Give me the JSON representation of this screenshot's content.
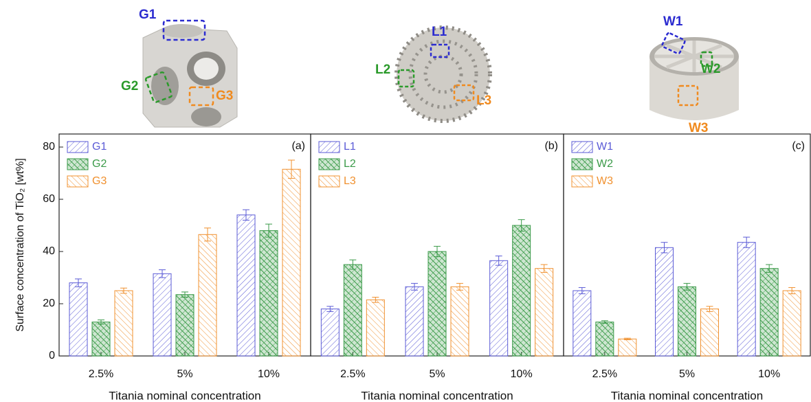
{
  "illustrations": [
    {
      "labels": [
        "G1",
        "G2",
        "G3"
      ]
    },
    {
      "labels": [
        "L1",
        "L2",
        "L3"
      ]
    },
    {
      "labels": [
        "W1",
        "W2",
        "W3"
      ]
    }
  ],
  "chart_data": [
    {
      "type": "bar",
      "panel_label": "(a)",
      "ylabel": "Surface concentration of TiO₂ [wt%]",
      "xlabel": "Titania nominal concentration",
      "categories": [
        "2.5%",
        "5%",
        "10%"
      ],
      "ylim": [
        0,
        85
      ],
      "yticks": [
        0,
        20,
        40,
        60,
        80
      ],
      "series": [
        {
          "name": "G1",
          "color": "#5a5ad6",
          "values": [
            28,
            31.5,
            54
          ],
          "errors": [
            1.5,
            1.5,
            2
          ]
        },
        {
          "name": "G2",
          "color": "#3a9a48",
          "values": [
            13,
            23.5,
            48
          ],
          "errors": [
            0.8,
            1,
            2.5
          ]
        },
        {
          "name": "G3",
          "color": "#f0902e",
          "values": [
            25,
            46.5,
            71.5
          ],
          "errors": [
            1,
            2.5,
            3.5
          ]
        }
      ]
    },
    {
      "type": "bar",
      "panel_label": "(b)",
      "xlabel": "Titania nominal concentration",
      "categories": [
        "2.5%",
        "5%",
        "10%"
      ],
      "ylim": [
        0,
        85
      ],
      "series": [
        {
          "name": "L1",
          "color": "#5a5ad6",
          "values": [
            18,
            26.5,
            36.5
          ],
          "errors": [
            1,
            1.3,
            1.8
          ]
        },
        {
          "name": "L2",
          "color": "#3a9a48",
          "values": [
            35,
            40,
            50
          ],
          "errors": [
            1.8,
            2,
            2.2
          ]
        },
        {
          "name": "L3",
          "color": "#f0902e",
          "values": [
            21.5,
            26.5,
            33.5
          ],
          "errors": [
            1,
            1.3,
            1.5
          ]
        }
      ]
    },
    {
      "type": "bar",
      "panel_label": "(c)",
      "xlabel": "Titania nominal concentration",
      "categories": [
        "2.5%",
        "5%",
        "10%"
      ],
      "ylim": [
        0,
        85
      ],
      "series": [
        {
          "name": "W1",
          "color": "#5a5ad6",
          "values": [
            25,
            41.5,
            43.5
          ],
          "errors": [
            1.2,
            2,
            2
          ]
        },
        {
          "name": "W2",
          "color": "#3a9a48",
          "values": [
            13,
            26.5,
            33.5
          ],
          "errors": [
            0.5,
            1.3,
            1.5
          ]
        },
        {
          "name": "W3",
          "color": "#f0902e",
          "values": [
            6.5,
            18,
            25
          ],
          "errors": [
            0.3,
            1,
            1.2
          ]
        }
      ]
    }
  ]
}
